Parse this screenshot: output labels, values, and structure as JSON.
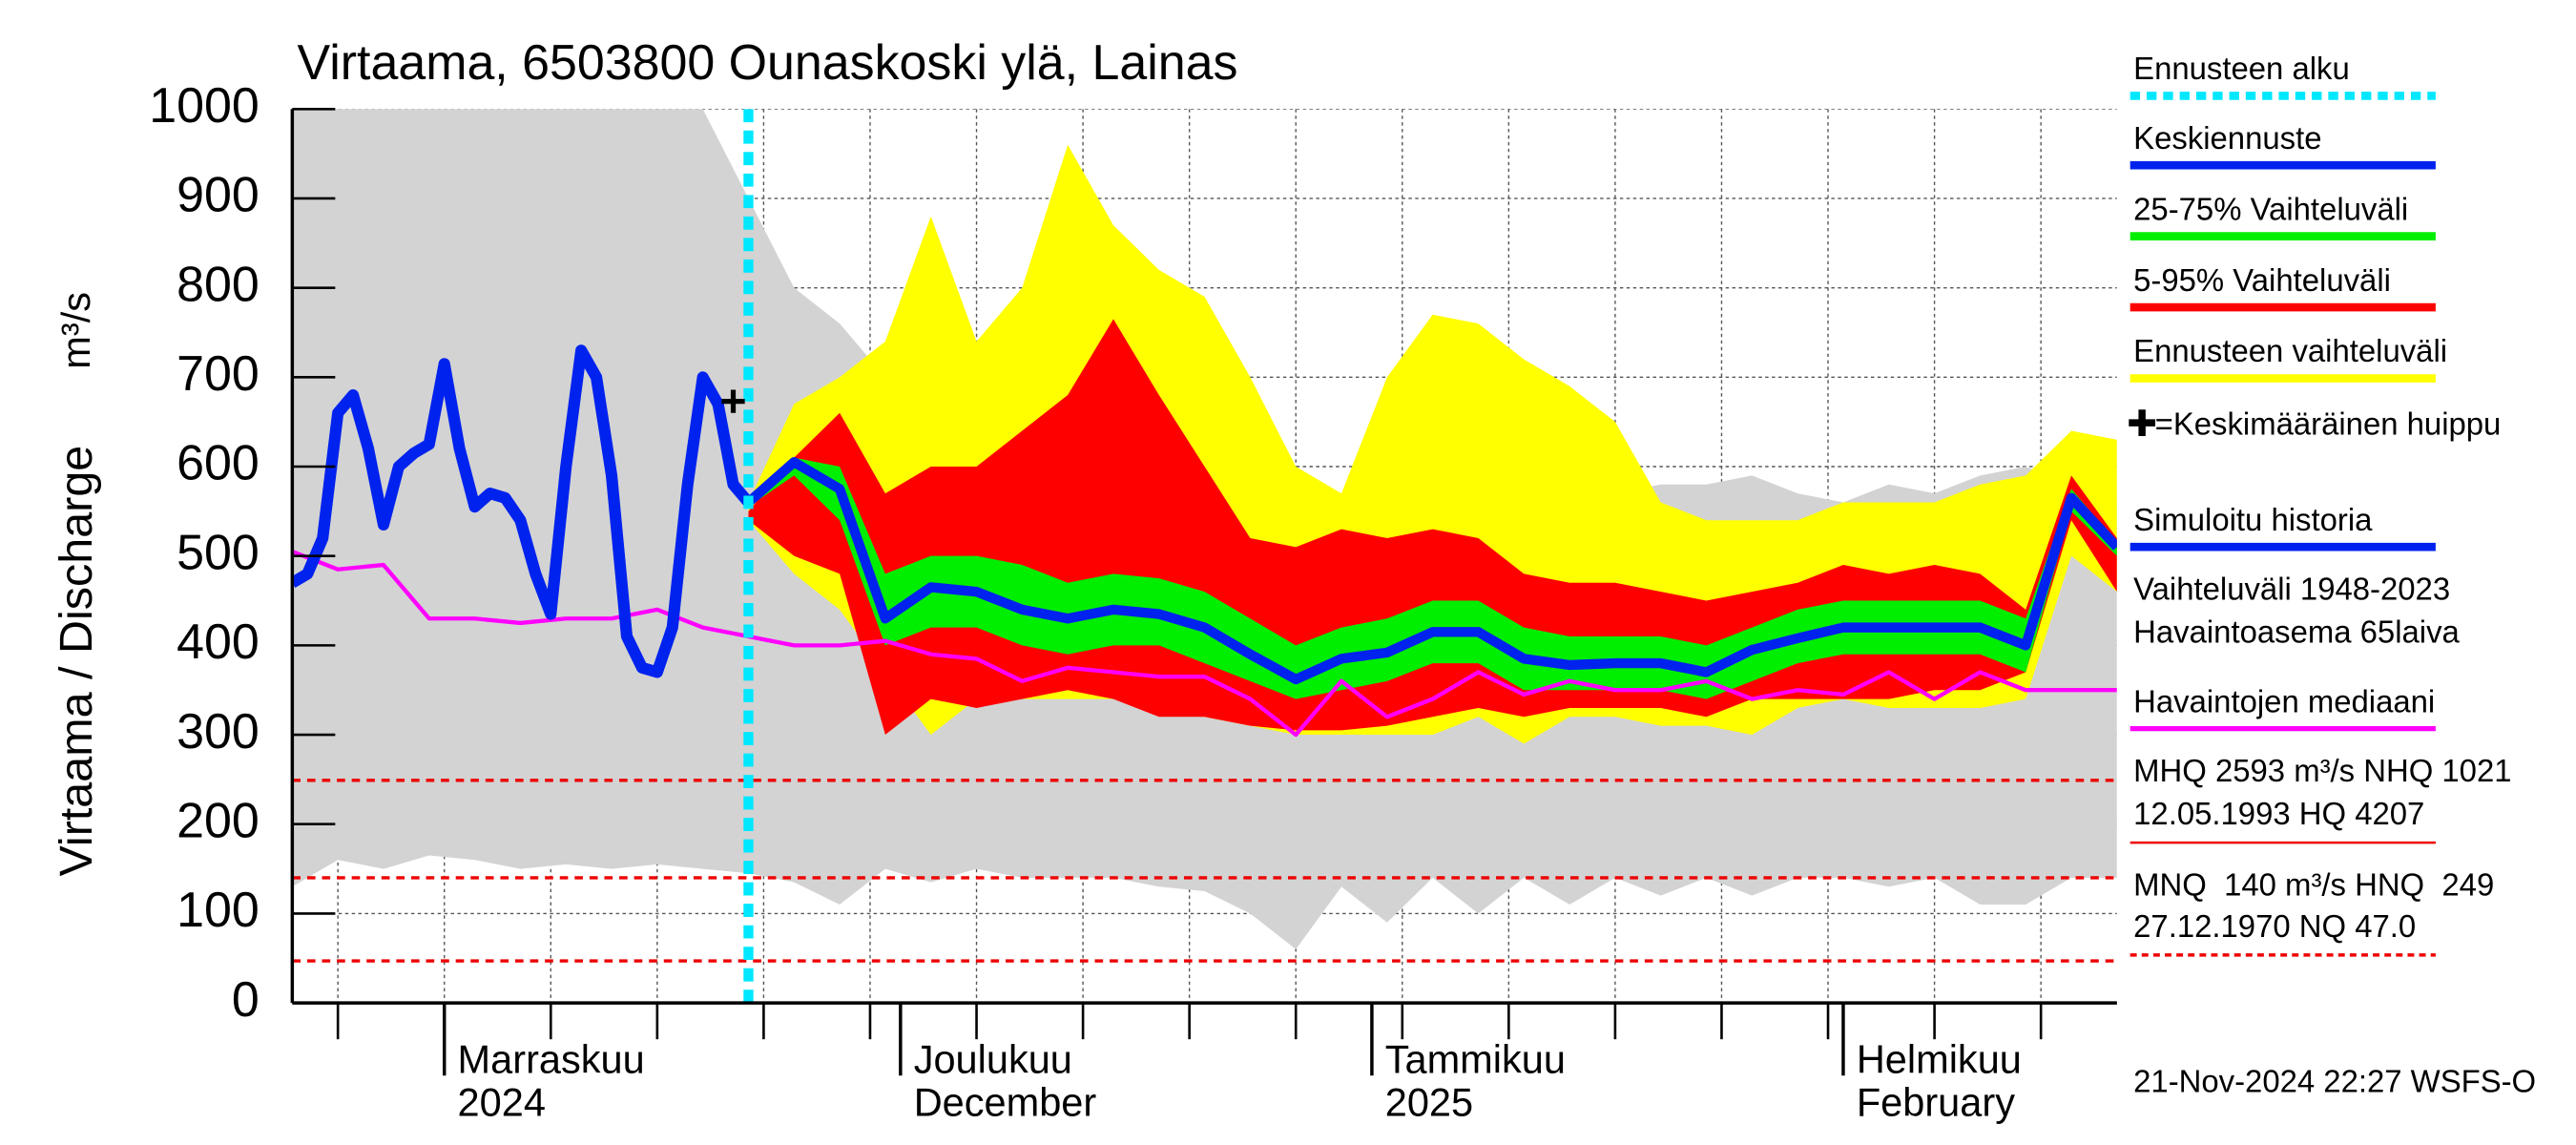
{
  "chart_data": {
    "type": "line",
    "title": "Virtaama, 6503800 Ounaskoski ylä, Lainas",
    "y_label": "Virtaama / Discharge",
    "y_unit": "m³/s",
    "xlim": [
      0,
      120
    ],
    "ylim": [
      0,
      1000
    ],
    "yticks": [
      0,
      100,
      200,
      300,
      400,
      500,
      600,
      700,
      800,
      900,
      1000
    ],
    "xticks": [
      3,
      10,
      17,
      24,
      31,
      38,
      45,
      52,
      59,
      66,
      73,
      80,
      87,
      94,
      101,
      108,
      115
    ],
    "x_month_labels": [
      {
        "value": 10,
        "label": "Marraskuu"
      },
      {
        "value": 40,
        "label": "Joulukuu"
      },
      {
        "value": 71,
        "label": "Tammikuu"
      },
      {
        "value": 102,
        "label": "Helmikuu"
      }
    ],
    "x_second_labels": [
      {
        "value": 10,
        "label": "2024"
      },
      {
        "value": 40,
        "label": "December"
      },
      {
        "value": 71,
        "label": "2025"
      },
      {
        "value": 102,
        "label": "February"
      }
    ],
    "grid": true,
    "forecast_start": {
      "name": "Ennusteen alku",
      "x": 30,
      "color": "#00e8ff"
    },
    "peak": {
      "name": "=Keskimääräinen huippu",
      "x": 29,
      "value": 673,
      "color": "#000000"
    },
    "series": [
      {
        "name": "Keskiennuste",
        "kind": "line",
        "color": "#0022ee",
        "width": 6,
        "x": [
          30,
          33,
          36,
          39,
          42,
          45,
          48,
          51,
          54,
          57,
          60,
          63,
          66,
          69,
          72,
          75,
          78,
          81,
          84,
          87,
          90,
          93,
          96,
          99,
          102,
          105,
          108,
          111,
          114,
          117,
          120
        ],
        "values": [
          560,
          605,
          575,
          430,
          465,
          460,
          440,
          430,
          440,
          435,
          420,
          390,
          362,
          385,
          392,
          415,
          415,
          385,
          378,
          380,
          380,
          370,
          395,
          408,
          420,
          420,
          420,
          420,
          400,
          565,
          510
        ]
      },
      {
        "name": "25-75% Vaihteluväli",
        "kind": "band",
        "color": "#00ee00",
        "x": [
          30,
          33,
          36,
          39,
          42,
          45,
          48,
          51,
          54,
          57,
          60,
          63,
          66,
          69,
          72,
          75,
          78,
          81,
          84,
          87,
          90,
          93,
          96,
          99,
          102,
          105,
          108,
          111,
          114,
          117,
          120
        ],
        "high": [
          560,
          610,
          600,
          480,
          500,
          500,
          490,
          470,
          480,
          475,
          460,
          430,
          400,
          420,
          430,
          450,
          450,
          420,
          410,
          410,
          410,
          400,
          420,
          440,
          450,
          450,
          450,
          450,
          430,
          575,
          515
        ],
        "low": [
          555,
          590,
          540,
          400,
          420,
          420,
          400,
          390,
          400,
          400,
          380,
          360,
          340,
          350,
          360,
          380,
          380,
          350,
          350,
          350,
          350,
          340,
          360,
          380,
          390,
          390,
          390,
          390,
          370,
          550,
          500
        ]
      },
      {
        "name": "5-95% Vaihteluväli",
        "kind": "band",
        "color": "#ff0000",
        "x": [
          30,
          33,
          36,
          39,
          42,
          45,
          48,
          51,
          54,
          57,
          60,
          63,
          66,
          69,
          72,
          75,
          78,
          81,
          84,
          87,
          90,
          93,
          96,
          99,
          102,
          105,
          108,
          111,
          114,
          117,
          120
        ],
        "high": [
          550,
          610,
          660,
          570,
          600,
          600,
          640,
          680,
          765,
          680,
          600,
          520,
          510,
          530,
          520,
          530,
          520,
          480,
          470,
          470,
          460,
          450,
          460,
          470,
          490,
          480,
          490,
          480,
          440,
          590,
          520
        ],
        "low": [
          540,
          500,
          480,
          300,
          340,
          330,
          340,
          350,
          340,
          320,
          320,
          310,
          305,
          305,
          310,
          320,
          330,
          320,
          330,
          330,
          330,
          320,
          340,
          340,
          340,
          340,
          350,
          350,
          370,
          540,
          460
        ]
      },
      {
        "name": "Ennusteen vaihteluväli",
        "kind": "band",
        "color": "#ffff00",
        "x": [
          30,
          33,
          36,
          39,
          42,
          45,
          48,
          51,
          54,
          57,
          60,
          63,
          66,
          69,
          72,
          75,
          78,
          81,
          84,
          87,
          90,
          93,
          96,
          99,
          102,
          105,
          108,
          111,
          114,
          117,
          120
        ],
        "high": [
          560,
          670,
          700,
          740,
          880,
          740,
          800,
          960,
          870,
          820,
          790,
          700,
          600,
          570,
          700,
          770,
          760,
          720,
          690,
          650,
          560,
          540,
          540,
          540,
          560,
          560,
          560,
          580,
          590,
          640,
          630
        ],
        "low": [
          540,
          480,
          440,
          370,
          300,
          340,
          340,
          340,
          340,
          330,
          320,
          310,
          300,
          300,
          300,
          300,
          320,
          290,
          320,
          320,
          310,
          310,
          300,
          330,
          340,
          330,
          330,
          330,
          340,
          500,
          460
        ]
      },
      {
        "name": "Simuloitu historia",
        "kind": "line",
        "color": "#0022ee",
        "width": 7,
        "x": [
          0,
          1,
          2,
          3,
          4,
          5,
          6,
          7,
          8,
          9,
          10,
          11,
          12,
          13,
          14,
          15,
          16,
          17,
          18,
          19,
          20,
          21,
          22,
          23,
          24,
          25,
          26,
          27,
          28,
          29,
          30
        ],
        "values": [
          470,
          480,
          520,
          660,
          680,
          620,
          535,
          600,
          615,
          625,
          715,
          620,
          555,
          570,
          565,
          540,
          480,
          435,
          600,
          730,
          700,
          590,
          410,
          375,
          370,
          420,
          580,
          700,
          670,
          580,
          560
        ]
      },
      {
        "name": "Vaihteluväli 1948-2023",
        "kind": "band",
        "color": "#d3d3d3",
        "x": [
          0,
          3,
          6,
          9,
          12,
          15,
          18,
          21,
          24,
          27,
          30,
          33,
          36,
          39,
          42,
          45,
          48,
          51,
          54,
          57,
          60,
          63,
          66,
          69,
          72,
          75,
          78,
          81,
          84,
          87,
          90,
          93,
          96,
          99,
          102,
          105,
          108,
          111,
          114,
          117,
          120
        ],
        "high": [
          1000,
          1000,
          1000,
          1000,
          1000,
          1000,
          1000,
          1000,
          1000,
          1000,
          900,
          800,
          760,
          700,
          650,
          640,
          620,
          620,
          610,
          600,
          580,
          560,
          540,
          560,
          560,
          570,
          580,
          580,
          570,
          570,
          580,
          580,
          590,
          570,
          560,
          580,
          570,
          590,
          600,
          580,
          560
        ],
        "low": [
          130,
          160,
          150,
          165,
          160,
          150,
          155,
          150,
          155,
          150,
          145,
          135,
          110,
          150,
          135,
          150,
          140,
          140,
          140,
          130,
          125,
          100,
          60,
          130,
          90,
          140,
          100,
          140,
          110,
          140,
          120,
          140,
          120,
          140,
          140,
          130,
          140,
          110,
          110,
          140,
          140
        ]
      },
      {
        "name": "Havaintojen mediaani",
        "kind": "line",
        "color": "#ff00ff",
        "width": 2.5,
        "x": [
          0,
          3,
          6,
          9,
          12,
          15,
          18,
          21,
          24,
          27,
          30,
          33,
          36,
          39,
          42,
          45,
          48,
          51,
          54,
          57,
          60,
          63,
          66,
          69,
          72,
          75,
          78,
          81,
          84,
          87,
          90,
          93,
          96,
          99,
          102,
          105,
          108,
          111,
          114,
          117,
          120
        ],
        "values": [
          505,
          485,
          490,
          430,
          430,
          425,
          430,
          430,
          440,
          420,
          410,
          400,
          400,
          405,
          390,
          385,
          360,
          375,
          370,
          365,
          365,
          340,
          300,
          360,
          320,
          340,
          370,
          345,
          360,
          350,
          350,
          360,
          340,
          350,
          345,
          370,
          340,
          370,
          350,
          350,
          350
        ]
      }
    ],
    "station_label": "Havaintoasema 65laiva",
    "ref_lines": {
      "values": [
        249,
        140,
        47
      ],
      "color": "#ee0000"
    },
    "stats": [
      "MHQ 2593 m³/s NHQ 1021",
      "12.05.1993 HQ 4207",
      "MNQ  140 m³/s HNQ  249",
      "27.12.1970 NQ 47.0"
    ],
    "footer": "21-Nov-2024 22:27 WSFS-O"
  }
}
